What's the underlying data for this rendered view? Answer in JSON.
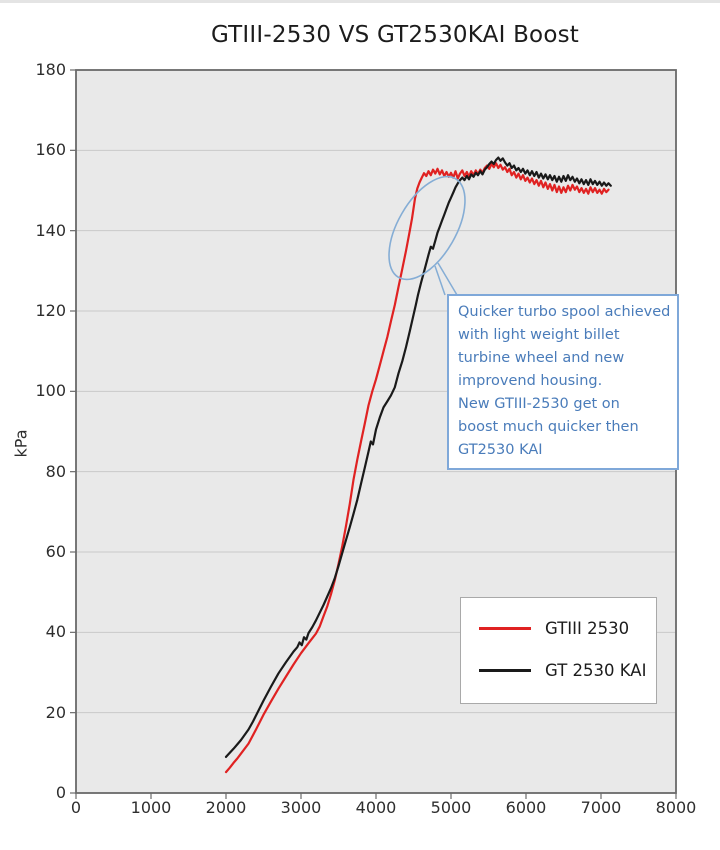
{
  "chart_data": {
    "type": "line",
    "title": "GTIII-2530 VS GT2530KAI Boost",
    "xlabel": "",
    "ylabel": "kPa",
    "xlim": [
      0,
      8000
    ],
    "ylim": [
      0,
      180
    ],
    "xticks": [
      0,
      1000,
      2000,
      3000,
      4000,
      5000,
      6000,
      7000,
      8000
    ],
    "yticks": [
      0,
      20,
      40,
      60,
      80,
      100,
      120,
      140,
      160,
      180
    ],
    "grid": "horizontal",
    "plot_bg": "#e9e9e9",
    "grid_color": "#c9c9c9",
    "border_color": "#6a6a6a",
    "legend": {
      "position": "lower-right",
      "entries": [
        {
          "label": "GTIII 2530",
          "color": "#e02222"
        },
        {
          "label": "GT 2530 KAI",
          "color": "#1a1a1a"
        }
      ]
    },
    "series": [
      {
        "name": "GTIII 2530",
        "color": "#e02222",
        "points": [
          [
            2000,
            5.2
          ],
          [
            2050,
            6.3
          ],
          [
            2100,
            7.5
          ],
          [
            2150,
            8.6
          ],
          [
            2200,
            9.8
          ],
          [
            2300,
            12.3
          ],
          [
            2400,
            15.8
          ],
          [
            2500,
            19.5
          ],
          [
            2600,
            22.8
          ],
          [
            2700,
            26.0
          ],
          [
            2800,
            29.0
          ],
          [
            2900,
            32.0
          ],
          [
            3000,
            34.8
          ],
          [
            3100,
            37.3
          ],
          [
            3200,
            39.7
          ],
          [
            3250,
            41.5
          ],
          [
            3300,
            44.0
          ],
          [
            3350,
            46.5
          ],
          [
            3400,
            49.5
          ],
          [
            3450,
            53.0
          ],
          [
            3500,
            57.0
          ],
          [
            3550,
            61.5
          ],
          [
            3600,
            66.5
          ],
          [
            3650,
            72.0
          ],
          [
            3700,
            78.0
          ],
          [
            3750,
            83.0
          ],
          [
            3800,
            87.5
          ],
          [
            3850,
            92.0
          ],
          [
            3900,
            96.5
          ],
          [
            3950,
            100.0
          ],
          [
            4000,
            103.0
          ],
          [
            4050,
            106.5
          ],
          [
            4100,
            110.0
          ],
          [
            4150,
            113.5
          ],
          [
            4200,
            117.5
          ],
          [
            4250,
            121.5
          ],
          [
            4300,
            126.0
          ],
          [
            4350,
            130.5
          ],
          [
            4400,
            135.0
          ],
          [
            4450,
            140.0
          ],
          [
            4480,
            143.0
          ],
          [
            4500,
            145.5
          ],
          [
            4520,
            148.0
          ],
          [
            4550,
            150.5
          ],
          [
            4580,
            152.0
          ],
          [
            4610,
            153.2
          ],
          [
            4640,
            154.3
          ],
          [
            4670,
            153.6
          ],
          [
            4700,
            154.8
          ],
          [
            4730,
            153.8
          ],
          [
            4760,
            155.2
          ],
          [
            4790,
            154.2
          ],
          [
            4820,
            155.4
          ],
          [
            4850,
            154.0
          ],
          [
            4880,
            155.0
          ],
          [
            4910,
            153.6
          ],
          [
            4940,
            154.6
          ],
          [
            4970,
            153.4
          ],
          [
            5000,
            154.4
          ],
          [
            5030,
            153.2
          ],
          [
            5060,
            154.8
          ],
          [
            5090,
            153.0
          ],
          [
            5120,
            154.2
          ],
          [
            5150,
            155.0
          ],
          [
            5180,
            153.6
          ],
          [
            5210,
            154.6
          ],
          [
            5240,
            153.4
          ],
          [
            5270,
            154.8
          ],
          [
            5300,
            153.8
          ],
          [
            5330,
            155.0
          ],
          [
            5360,
            154.0
          ],
          [
            5390,
            155.2
          ],
          [
            5420,
            154.4
          ],
          [
            5450,
            155.6
          ],
          [
            5480,
            156.2
          ],
          [
            5510,
            155.4
          ],
          [
            5540,
            156.6
          ],
          [
            5570,
            155.8
          ],
          [
            5600,
            156.8
          ],
          [
            5630,
            155.6
          ],
          [
            5660,
            156.4
          ],
          [
            5690,
            155.2
          ],
          [
            5720,
            155.8
          ],
          [
            5750,
            154.6
          ],
          [
            5780,
            155.4
          ],
          [
            5810,
            153.8
          ],
          [
            5840,
            154.6
          ],
          [
            5870,
            153.2
          ],
          [
            5900,
            154.2
          ],
          [
            5930,
            152.8
          ],
          [
            5960,
            153.8
          ],
          [
            5990,
            152.4
          ],
          [
            6020,
            153.2
          ],
          [
            6050,
            152.0
          ],
          [
            6080,
            153.0
          ],
          [
            6110,
            151.6
          ],
          [
            6140,
            152.6
          ],
          [
            6170,
            151.2
          ],
          [
            6200,
            152.4
          ],
          [
            6230,
            150.8
          ],
          [
            6260,
            152.0
          ],
          [
            6290,
            150.4
          ],
          [
            6320,
            151.6
          ],
          [
            6350,
            150.0
          ],
          [
            6380,
            151.4
          ],
          [
            6410,
            149.6
          ],
          [
            6440,
            151.0
          ],
          [
            6470,
            149.4
          ],
          [
            6500,
            150.8
          ],
          [
            6530,
            149.6
          ],
          [
            6560,
            151.2
          ],
          [
            6590,
            150.0
          ],
          [
            6620,
            151.4
          ],
          [
            6650,
            150.2
          ],
          [
            6680,
            151.0
          ],
          [
            6710,
            149.6
          ],
          [
            6740,
            150.6
          ],
          [
            6770,
            149.4
          ],
          [
            6800,
            150.4
          ],
          [
            6830,
            149.2
          ],
          [
            6860,
            150.8
          ],
          [
            6890,
            149.6
          ],
          [
            6920,
            150.6
          ],
          [
            6950,
            149.4
          ],
          [
            6980,
            150.2
          ],
          [
            7010,
            149.2
          ],
          [
            7040,
            150.4
          ],
          [
            7070,
            149.6
          ],
          [
            7100,
            150.2
          ]
        ]
      },
      {
        "name": "GT 2530 KAI",
        "color": "#1a1a1a",
        "points": [
          [
            2000,
            9.0
          ],
          [
            2050,
            10.0
          ],
          [
            2100,
            11.0
          ],
          [
            2150,
            12.1
          ],
          [
            2200,
            13.2
          ],
          [
            2300,
            15.8
          ],
          [
            2360,
            17.8
          ],
          [
            2400,
            19.3
          ],
          [
            2500,
            23.0
          ],
          [
            2600,
            26.5
          ],
          [
            2700,
            29.8
          ],
          [
            2800,
            32.6
          ],
          [
            2900,
            35.2
          ],
          [
            2950,
            36.3
          ],
          [
            2980,
            37.5
          ],
          [
            3010,
            36.8
          ],
          [
            3040,
            38.8
          ],
          [
            3070,
            38.2
          ],
          [
            3100,
            39.8
          ],
          [
            3150,
            41.3
          ],
          [
            3200,
            43.0
          ],
          [
            3300,
            46.8
          ],
          [
            3400,
            51.0
          ],
          [
            3450,
            53.5
          ],
          [
            3500,
            56.5
          ],
          [
            3550,
            59.8
          ],
          [
            3600,
            63.0
          ],
          [
            3650,
            66.2
          ],
          [
            3700,
            69.5
          ],
          [
            3750,
            73.0
          ],
          [
            3800,
            77.0
          ],
          [
            3850,
            81.0
          ],
          [
            3900,
            85.0
          ],
          [
            3930,
            87.5
          ],
          [
            3960,
            86.8
          ],
          [
            4000,
            90.5
          ],
          [
            4050,
            93.5
          ],
          [
            4100,
            96.0
          ],
          [
            4150,
            97.5
          ],
          [
            4200,
            99.0
          ],
          [
            4250,
            101.0
          ],
          [
            4300,
            104.5
          ],
          [
            4350,
            107.5
          ],
          [
            4400,
            111.0
          ],
          [
            4450,
            115.0
          ],
          [
            4500,
            119.0
          ],
          [
            4530,
            121.5
          ],
          [
            4560,
            124.0
          ],
          [
            4600,
            127.0
          ],
          [
            4650,
            130.5
          ],
          [
            4700,
            134.0
          ],
          [
            4730,
            136.0
          ],
          [
            4760,
            135.5
          ],
          [
            4790,
            137.5
          ],
          [
            4820,
            139.5
          ],
          [
            4850,
            141.0
          ],
          [
            4880,
            142.5
          ],
          [
            4910,
            144.0
          ],
          [
            4940,
            145.5
          ],
          [
            4970,
            147.0
          ],
          [
            5000,
            148.2
          ],
          [
            5030,
            149.5
          ],
          [
            5060,
            150.8
          ],
          [
            5090,
            151.8
          ],
          [
            5120,
            152.6
          ],
          [
            5150,
            153.2
          ],
          [
            5180,
            152.6
          ],
          [
            5210,
            153.6
          ],
          [
            5240,
            152.8
          ],
          [
            5270,
            154.0
          ],
          [
            5300,
            153.4
          ],
          [
            5330,
            154.4
          ],
          [
            5360,
            153.8
          ],
          [
            5390,
            154.8
          ],
          [
            5420,
            154.0
          ],
          [
            5450,
            155.2
          ],
          [
            5480,
            155.8
          ],
          [
            5510,
            156.6
          ],
          [
            5540,
            157.2
          ],
          [
            5570,
            156.6
          ],
          [
            5600,
            157.6
          ],
          [
            5630,
            158.2
          ],
          [
            5660,
            157.4
          ],
          [
            5690,
            158.0
          ],
          [
            5720,
            157.0
          ],
          [
            5750,
            156.2
          ],
          [
            5780,
            156.8
          ],
          [
            5810,
            155.6
          ],
          [
            5840,
            156.2
          ],
          [
            5870,
            155.0
          ],
          [
            5900,
            155.6
          ],
          [
            5930,
            154.6
          ],
          [
            5960,
            155.4
          ],
          [
            5990,
            154.2
          ],
          [
            6020,
            155.0
          ],
          [
            6050,
            153.8
          ],
          [
            6080,
            154.8
          ],
          [
            6110,
            153.6
          ],
          [
            6140,
            154.6
          ],
          [
            6170,
            153.2
          ],
          [
            6200,
            154.2
          ],
          [
            6230,
            153.0
          ],
          [
            6260,
            154.0
          ],
          [
            6290,
            152.8
          ],
          [
            6320,
            153.8
          ],
          [
            6350,
            152.6
          ],
          [
            6380,
            153.6
          ],
          [
            6410,
            152.2
          ],
          [
            6440,
            153.4
          ],
          [
            6470,
            152.2
          ],
          [
            6500,
            153.6
          ],
          [
            6530,
            152.4
          ],
          [
            6560,
            153.8
          ],
          [
            6590,
            152.6
          ],
          [
            6620,
            153.4
          ],
          [
            6650,
            152.2
          ],
          [
            6680,
            153.0
          ],
          [
            6710,
            151.8
          ],
          [
            6740,
            152.8
          ],
          [
            6770,
            151.6
          ],
          [
            6800,
            152.6
          ],
          [
            6830,
            151.4
          ],
          [
            6860,
            152.8
          ],
          [
            6890,
            151.6
          ],
          [
            6920,
            152.4
          ],
          [
            6950,
            151.4
          ],
          [
            6980,
            152.2
          ],
          [
            7010,
            151.2
          ],
          [
            7040,
            152.0
          ],
          [
            7070,
            151.2
          ],
          [
            7100,
            151.8
          ],
          [
            7130,
            151.2
          ]
        ]
      }
    ]
  },
  "annotation": {
    "text": "Quicker turbo spool achieved\nwith light weight billet\nturbine wheel and new\nimprovend housing.\nNew GTIII-2530 get on\nboost much quicker then\nGT2530 KAI",
    "text_color": "#4a7cba",
    "border_color": "#7fa8d9",
    "ellipse_color": "#85add5"
  }
}
